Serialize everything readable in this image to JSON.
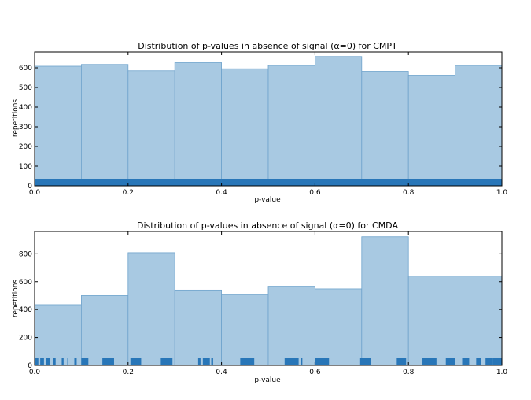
{
  "colors": {
    "bar_fill": "#a8c9e2",
    "bar_edge": "#6fa3cc",
    "rug": "#2876b8",
    "axis": "#000000"
  },
  "chart_data": [
    {
      "type": "bar",
      "title": "Distribution of p-values in absence of signal (α=0) for CMPT",
      "xlabel": "p-value",
      "ylabel": "repetitions",
      "xlim": [
        0.0,
        1.0
      ],
      "ylim": [
        0,
        680
      ],
      "xticks": [
        "0.0",
        "0.2",
        "0.4",
        "0.6",
        "0.8",
        "1.0"
      ],
      "yticks": [
        "0",
        "100",
        "200",
        "300",
        "400",
        "500",
        "600"
      ],
      "bin_edges": [
        0.0,
        0.1,
        0.2,
        0.3,
        0.4,
        0.5,
        0.6,
        0.7,
        0.8,
        0.9,
        1.0
      ],
      "values": [
        608,
        617,
        585,
        626,
        595,
        612,
        657,
        582,
        562,
        612
      ],
      "rug": "dense",
      "grid": false
    },
    {
      "type": "bar",
      "title": "Distribution of p-values in absence of signal (α=0) for CMDA",
      "xlabel": "p-value",
      "ylabel": "repetitions",
      "xlim": [
        0.0,
        1.0
      ],
      "ylim": [
        0,
        960
      ],
      "xticks": [
        "0.0",
        "0.2",
        "0.4",
        "0.6",
        "0.8",
        "1.0"
      ],
      "yticks": [
        "0",
        "200",
        "400",
        "600",
        "800"
      ],
      "bin_edges": [
        0.0,
        0.1,
        0.2,
        0.3,
        0.4,
        0.5,
        0.6,
        0.7,
        0.8,
        0.9,
        1.0
      ],
      "values": [
        435,
        500,
        808,
        540,
        505,
        567,
        548,
        922,
        640,
        640
      ],
      "rug": [
        [
          0.0,
          0.008
        ],
        [
          0.012,
          0.02
        ],
        [
          0.025,
          0.032
        ],
        [
          0.04,
          0.045
        ],
        [
          0.058,
          0.062
        ],
        [
          0.07,
          0.072
        ],
        [
          0.085,
          0.09
        ],
        [
          0.1,
          0.115
        ],
        [
          0.145,
          0.17
        ],
        [
          0.205,
          0.228
        ],
        [
          0.27,
          0.295
        ],
        [
          0.35,
          0.355
        ],
        [
          0.36,
          0.375
        ],
        [
          0.378,
          0.382
        ],
        [
          0.44,
          0.47
        ],
        [
          0.535,
          0.565
        ],
        [
          0.57,
          0.573
        ],
        [
          0.6,
          0.63
        ],
        [
          0.695,
          0.72
        ],
        [
          0.775,
          0.795
        ],
        [
          0.83,
          0.86
        ],
        [
          0.88,
          0.9
        ],
        [
          0.915,
          0.93
        ],
        [
          0.945,
          0.955
        ],
        [
          0.965,
          0.98
        ],
        [
          0.98,
          1.0
        ]
      ],
      "grid": false
    }
  ]
}
